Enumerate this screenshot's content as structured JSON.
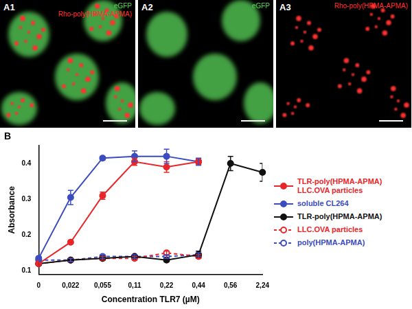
{
  "images": [
    {
      "label": "A1",
      "captions": [
        {
          "text": "eGFP",
          "color": "#5ad65a"
        },
        {
          "text": "Rho-poly(HPMA-APMA)",
          "color": "#ff3030"
        }
      ]
    },
    {
      "label": "A2",
      "captions": [
        {
          "text": "eGFP",
          "color": "#5ad65a"
        }
      ]
    },
    {
      "label": "A3",
      "captions": [
        {
          "text": "Rho-poly(HPMA-APMA)",
          "color": "#ff3030"
        }
      ]
    }
  ],
  "chart_data": {
    "type": "line",
    "annotations": [
      "B"
    ],
    "x_label": "Concentration TLR7 (µM)",
    "y_label": "Absorbance",
    "categories": [
      "0",
      "0,022",
      "0,055",
      "0,11",
      "0,22",
      "0,44",
      "0,56",
      "2,24"
    ],
    "ylim": [
      0.09,
      0.45
    ],
    "yticks": [
      0.1,
      0.2,
      0.3,
      0.4
    ],
    "grid": false,
    "legend": "right",
    "series": [
      {
        "name": "TLR-poly(HPMA-APMA)\nLLC.OVA particles",
        "color": "#e8262a",
        "marker": "circle",
        "line_style": "solid",
        "values": [
          0.12,
          0.18,
          0.31,
          0.405,
          0.39,
          0.405,
          null,
          null
        ],
        "errors": [
          0.005,
          0.005,
          0.01,
          0.01,
          0.015,
          0.008,
          null,
          null
        ]
      },
      {
        "name": "soluble CL264",
        "color": "#3b4cc0",
        "marker": "circle",
        "line_style": "solid",
        "values": [
          0.135,
          0.305,
          0.415,
          0.42,
          0.42,
          0.405,
          null,
          null
        ],
        "errors": [
          0.005,
          0.02,
          0.005,
          0.015,
          0.02,
          0.01,
          null,
          null
        ]
      },
      {
        "name": "TLR-poly(HPMA-APMA)",
        "color": "#111111",
        "marker": "circle",
        "line_style": "solid",
        "values": [
          0.12,
          0.13,
          0.135,
          0.14,
          0.13,
          0.145,
          0.4,
          0.375
        ],
        "errors": [
          0.005,
          0.005,
          0.005,
          0.005,
          0.005,
          0.01,
          0.02,
          0.025
        ]
      },
      {
        "name": "LLC.OVA particles",
        "color": "#e8262a",
        "marker": "open_circle",
        "line_style": "dashed",
        "values": [
          0.12,
          0.13,
          0.135,
          0.135,
          0.15,
          0.14,
          null,
          null
        ],
        "errors": [
          0.005,
          0.005,
          0.005,
          0.005,
          0.005,
          0.005,
          null,
          null
        ]
      },
      {
        "name": "poly(HPMA-APMA)",
        "color": "#3b4cc0",
        "marker": "open_circle",
        "line_style": "dashed",
        "values": [
          0.13,
          0.13,
          0.14,
          0.14,
          0.14,
          0.145,
          null,
          null
        ],
        "errors": [
          0.005,
          0.005,
          0.005,
          0.005,
          0.005,
          0.005,
          null,
          null
        ]
      }
    ]
  }
}
